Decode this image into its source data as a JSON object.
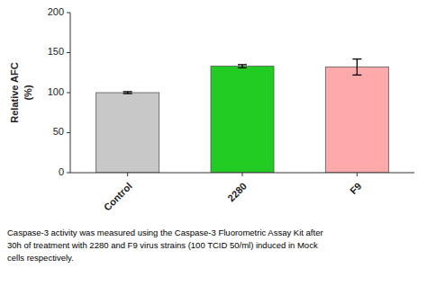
{
  "chart_data": {
    "type": "bar",
    "categories": [
      "Control",
      "2280",
      "F9"
    ],
    "values": [
      100,
      133,
      132
    ],
    "errors": [
      1.2,
      2.0,
      10
    ],
    "colors": [
      "#c8c8c8",
      "#22cc22",
      "#ffaaaa"
    ],
    "y_label": "Relative AFC\n(%)",
    "ylim": [
      0,
      200
    ],
    "yticks": [
      0,
      50,
      100,
      150,
      200
    ],
    "grid": false,
    "annotations": [
      "Caspase-3 activity was measured using the Caspase-3 Fluorometric Assay Kit after\n30h of treatment with 2280 and F9 virus strains (100 TCID 50/ml) induced in Mock\ncells respectively."
    ]
  }
}
